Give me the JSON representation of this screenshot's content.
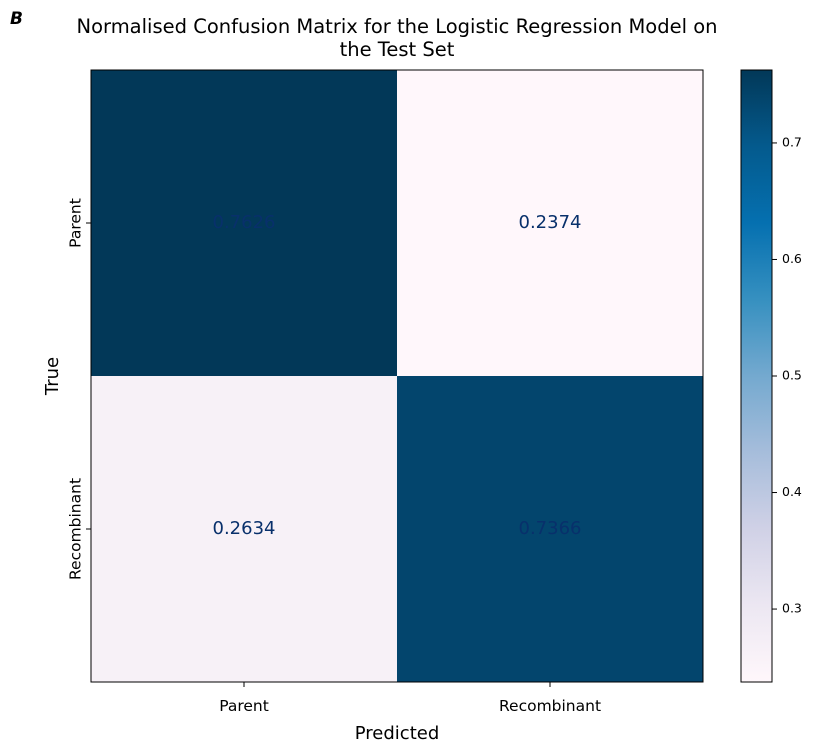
{
  "panel_label": "B",
  "chart_data": {
    "type": "heatmap",
    "title_lines": [
      "Normalised Confusion Matrix for the Logistic Regression Model on",
      "the Test Set"
    ],
    "xlabel": "Predicted",
    "ylabel": "True",
    "x_categories": [
      "Parent",
      "Recombinant"
    ],
    "y_categories": [
      "Parent",
      "Recombinant"
    ],
    "values": [
      [
        0.7626,
        0.2374
      ],
      [
        0.2634,
        0.7366
      ]
    ],
    "cell_labels": [
      [
        "0.7626",
        "0.2374"
      ],
      [
        "0.2634",
        "0.7366"
      ]
    ],
    "colormap": "PuBu",
    "colorbar": {
      "range": [
        0.2374,
        0.7626
      ],
      "ticks": [
        0.3,
        0.4,
        0.5,
        0.6,
        0.7
      ],
      "tick_labels": [
        "0.3",
        "0.4",
        "0.5",
        "0.6",
        "0.7"
      ]
    },
    "colors": {
      "cell_text": "#08306b"
    }
  }
}
